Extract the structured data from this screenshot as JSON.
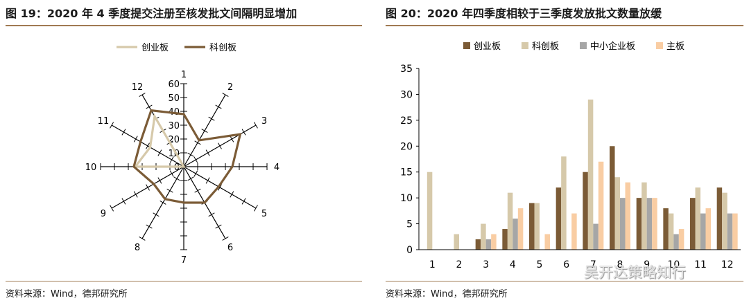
{
  "left_panel": {
    "title": "图 19：2020 年 4 季度提交注册至核发批文间隔明显增加",
    "source": "资料来源：Wind，德邦研究所"
  },
  "right_panel": {
    "title": "图 20：2020 年四季度相较于三季度发放批文数量放缓",
    "source": "资料来源：Wind，德邦研究所"
  },
  "watermark": "吴开达策略知行",
  "chart_data": [
    {
      "type": "radar",
      "categories": [
        "1",
        "2",
        "3",
        "4",
        "5",
        "6",
        "7",
        "8",
        "9",
        "10",
        "11",
        "12"
      ],
      "series": [
        {
          "name": "创业板",
          "color": "#d6c9aa",
          "values": [
            0,
            0,
            0,
            0,
            0,
            0,
            0,
            0,
            0,
            35,
            28,
            42
          ]
        },
        {
          "name": "科创板",
          "color": "#7b5b36",
          "values": [
            38,
            22,
            47,
            35,
            29,
            30,
            26,
            27,
            25,
            36,
            36,
            47
          ]
        }
      ],
      "rlim": [
        0,
        60
      ],
      "rticks": [
        "0",
        "10",
        "20",
        "30",
        "40",
        "50",
        "60"
      ],
      "legend": "top"
    },
    {
      "type": "bar",
      "categories": [
        "1",
        "2",
        "3",
        "4",
        "5",
        "6",
        "7",
        "8",
        "9",
        "10",
        "11",
        "12"
      ],
      "series": [
        {
          "name": "创业板",
          "color": "#7b5b36",
          "values": [
            0,
            0,
            2,
            4,
            9,
            12,
            15,
            20,
            10,
            8,
            10,
            12
          ]
        },
        {
          "name": "科创板",
          "color": "#d6c9aa",
          "values": [
            15,
            3,
            5,
            11,
            9,
            18,
            29,
            14,
            13,
            7,
            12,
            11
          ]
        },
        {
          "name": "中小企业板",
          "color": "#a6a6a6",
          "values": [
            0,
            0,
            2,
            6,
            0,
            0,
            5,
            10,
            10,
            3,
            7,
            7
          ]
        },
        {
          "name": "主板",
          "color": "#f9cda3",
          "values": [
            0,
            0,
            3,
            8,
            3,
            7,
            17,
            13,
            10,
            4,
            8,
            7
          ]
        }
      ],
      "ylim": [
        0,
        35
      ],
      "yticks": [
        "0",
        "5",
        "10",
        "15",
        "20",
        "25",
        "30",
        "35"
      ],
      "legend": "top"
    }
  ]
}
